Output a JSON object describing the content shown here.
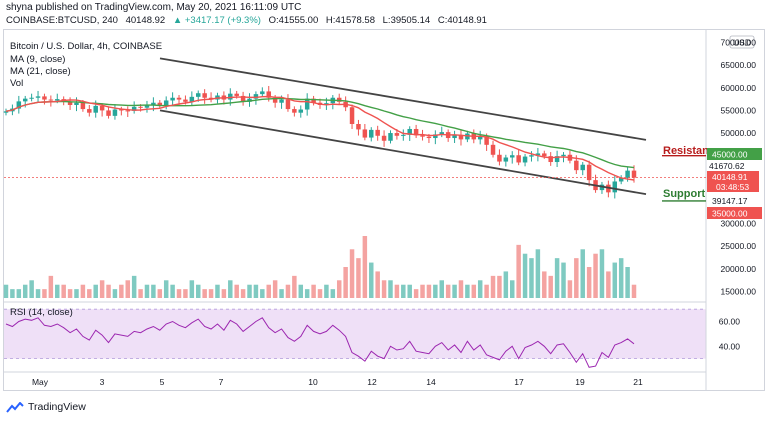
{
  "header": {
    "published": "shyna published on TradingView.com, May 20, 2021 16:11:09 UTC",
    "symbol": "COINBASE:BTCUSD, 240",
    "last": "40148.92",
    "change": "+3417.17 (+9.3%)",
    "o": "O:41555.00",
    "h": "H:41578.58",
    "l": "L:39505.14",
    "c": "C:40148.91"
  },
  "legend": {
    "title": "Bitcoin / U.S. Dollar, 4h, COINBASE",
    "ma9": "MA (9, close)",
    "ma21": "MA (21, close)",
    "vol": "Vol",
    "rsi": "RSI (14, close)"
  },
  "annotations": {
    "resistance": "Resistance",
    "support": "Support"
  },
  "currency": "USD",
  "price_labels": {
    "p1": "41670.62",
    "p2": "40148.91",
    "p3": "03:48:53",
    "p4": "39147.17"
  },
  "level_labels": {
    "resistance": "45000.00",
    "support": "35000.00"
  },
  "footer": {
    "brand": "TradingView"
  },
  "colors": {
    "up": "#26a69a",
    "down": "#ef5350",
    "ma9": "#ef5350",
    "ma21": "#43a047",
    "channel": "#444444",
    "resistance": "#b71c1c",
    "support": "#2e7d32",
    "rsi_line": "#9c27b0",
    "rsi_band": "#efe0f7",
    "vol_up": "#7fcac1",
    "vol_down": "#f4a3a1"
  },
  "chart_data": {
    "type": "candlestick",
    "title": "Bitcoin / U.S. Dollar, 4h, COINBASE",
    "x_ticks": [
      "May",
      "3",
      "5",
      "7",
      "10",
      "12",
      "14",
      "17",
      "19",
      "21"
    ],
    "y_ticks": [
      "70000.00",
      "65000.00",
      "60000.00",
      "55000.00",
      "50000.00",
      "45000.00",
      "35000.00",
      "30000.00",
      "25000.00",
      "20000.00",
      "15000.00"
    ],
    "rsi_ticks": [
      "60.00",
      "40.00"
    ],
    "ylim": [
      14000,
      71000
    ],
    "rsi_lim": [
      20,
      75
    ],
    "channel": {
      "upper": [
        [
          0,
          66500
        ],
        [
          1,
          48500
        ]
      ],
      "lower": [
        [
          0,
          55000
        ],
        [
          1,
          36500
        ]
      ]
    },
    "levels": {
      "resistance": 45000,
      "support": 35000
    },
    "closes": [
      54800,
      55400,
      57000,
      57600,
      57800,
      58100,
      57400,
      57200,
      57500,
      57000,
      56200,
      56700,
      55300,
      54500,
      56000,
      55000,
      53800,
      55200,
      55000,
      54900,
      55800,
      55600,
      56200,
      56700,
      56100,
      57200,
      57800,
      57400,
      56900,
      58000,
      58800,
      57800,
      57400,
      58300,
      57400,
      58700,
      58200,
      56900,
      57600,
      58600,
      59200,
      57800,
      56700,
      57400,
      55300,
      54500,
      55200,
      57600,
      56700,
      56200,
      56600,
      57800,
      56900,
      55700,
      52000,
      50800,
      49000,
      50700,
      49400,
      48300,
      50000,
      49400,
      49600,
      50900,
      49500,
      49200,
      48900,
      49700,
      50200,
      48900,
      49600,
      48600,
      49900,
      48600,
      49300,
      47400,
      45200,
      43700,
      44600,
      45100,
      43500,
      44800,
      45100,
      45500,
      44900,
      43600,
      44900,
      45200,
      43900,
      41800,
      43000,
      39600,
      37400,
      38600,
      36900,
      39300,
      40100,
      41700,
      40150
    ],
    "volumes": [
      3,
      2,
      2,
      3,
      4,
      2,
      2,
      5,
      3,
      3,
      2,
      2,
      3,
      2,
      3,
      4,
      3,
      2,
      3,
      4,
      5,
      2,
      3,
      3,
      2,
      4,
      3,
      2,
      2,
      4,
      3,
      2,
      2,
      3,
      2,
      4,
      3,
      2,
      3,
      3,
      2,
      3,
      4,
      2,
      3,
      5,
      3,
      2,
      3,
      2,
      3,
      2,
      4,
      7,
      11,
      9,
      14,
      8,
      6,
      4,
      4,
      3,
      3,
      3,
      2,
      3,
      3,
      3,
      4,
      3,
      3,
      4,
      3,
      3,
      4,
      3,
      5,
      5,
      6,
      4,
      12,
      10,
      9,
      11,
      6,
      5,
      9,
      8,
      4,
      9,
      11,
      7,
      10,
      11,
      6,
      8,
      9,
      7,
      3
    ],
    "rsi": [
      58,
      56,
      60,
      62,
      61,
      63,
      57,
      56,
      58,
      55,
      51,
      54,
      48,
      45,
      53,
      49,
      43,
      50,
      49,
      48,
      52,
      51,
      54,
      56,
      53,
      58,
      60,
      57,
      55,
      59,
      62,
      56,
      54,
      58,
      53,
      61,
      58,
      52,
      56,
      60,
      63,
      55,
      51,
      54,
      47,
      44,
      48,
      57,
      52,
      50,
      52,
      57,
      53,
      48,
      35,
      32,
      28,
      36,
      32,
      30,
      40,
      37,
      38,
      44,
      36,
      35,
      34,
      40,
      43,
      37,
      41,
      35,
      44,
      37,
      41,
      33,
      31,
      29,
      36,
      40,
      30,
      39,
      41,
      44,
      40,
      34,
      41,
      42,
      35,
      27,
      34,
      23,
      24,
      35,
      31,
      41,
      43,
      46,
      42
    ]
  }
}
